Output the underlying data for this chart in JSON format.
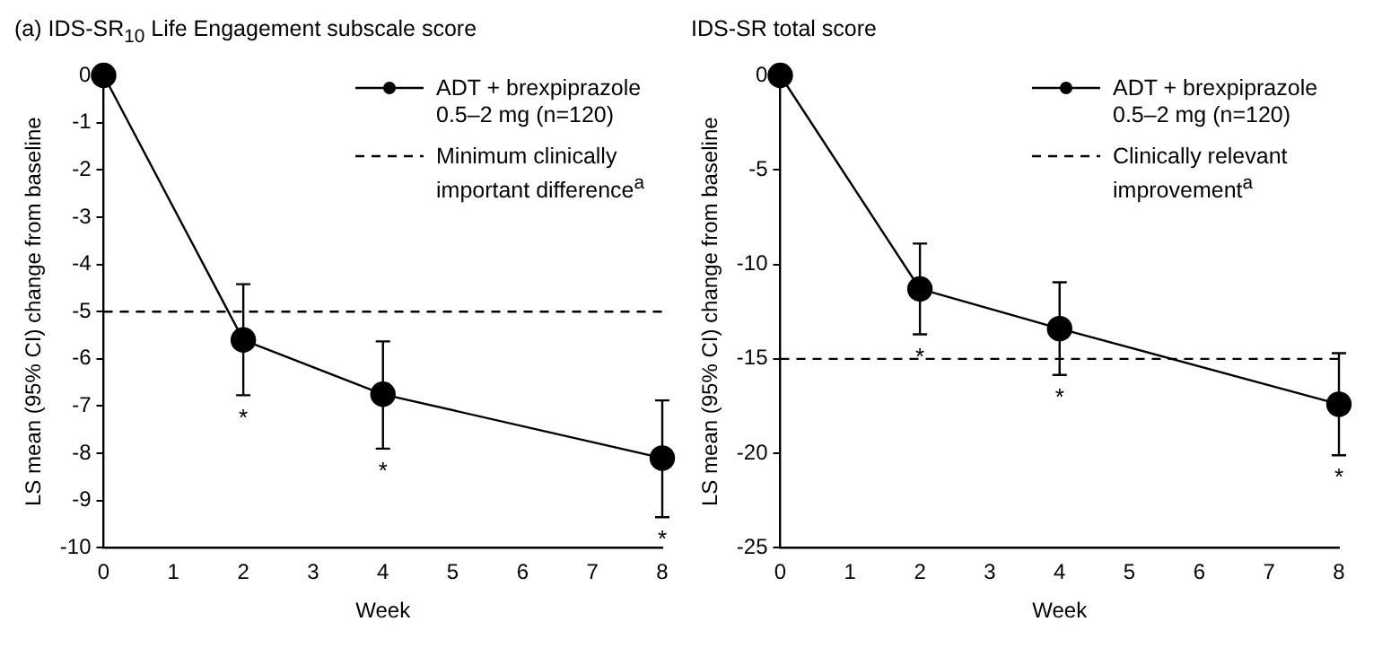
{
  "chart_data": [
    {
      "type": "line",
      "title": "(a) IDS-SR$_{10}$ Life Engagement subscale score",
      "xlabel": "Week",
      "ylabel": "LS mean (95% CI) change from baseline",
      "x": [
        0,
        2,
        4,
        8
      ],
      "xlim": [
        0,
        8
      ],
      "xticks": [
        0,
        1,
        2,
        3,
        4,
        5,
        6,
        7,
        8
      ],
      "ylim": [
        -10,
        0
      ],
      "yticks": [
        -10,
        -9,
        -8,
        -7,
        -6,
        -5,
        -4,
        -3,
        -2,
        -1,
        0
      ],
      "series": [
        {
          "name": "ADT + brexpiprazole 0.5–2 mg (n=120)",
          "color": "#000000",
          "values": [
            0,
            -5.6,
            -6.75,
            -8.1
          ],
          "errors": [
            null,
            [
              -6.77,
              -4.42
            ],
            [
              -7.9,
              -5.63
            ],
            [
              -9.35,
              -6.88
            ]
          ]
        }
      ],
      "ref_lines": [
        {
          "axis": "y",
          "value": -5,
          "label": "Minimum clinically important difference$^{a}$",
          "color": "#000000",
          "line_style": "dashed"
        }
      ],
      "annotations": [
        {
          "text": "*",
          "x": 2,
          "y": -6.77
        },
        {
          "text": "*",
          "x": 4,
          "y": -7.9
        },
        {
          "text": "*",
          "x": 8,
          "y": -9.35
        }
      ],
      "marker": "circle",
      "line_style": "solid",
      "legend": "top right",
      "grid": false
    },
    {
      "type": "line",
      "title": "IDS-SR total score",
      "xlabel": "Week",
      "ylabel": "LS mean (95% CI) change from baseline",
      "x": [
        0,
        2,
        4,
        8
      ],
      "xlim": [
        0,
        8
      ],
      "xticks": [
        0,
        1,
        2,
        3,
        4,
        5,
        6,
        7,
        8
      ],
      "ylim": [
        -25,
        0
      ],
      "yticks": [
        -25,
        -20,
        -15,
        -10,
        -5,
        0
      ],
      "series": [
        {
          "name": "ADT + brexpiprazole 0.5–2 mg (n=120)",
          "color": "#000000",
          "values": [
            0,
            -11.3,
            -13.4,
            -17.4
          ],
          "errors": [
            null,
            [
              -13.7,
              -8.9
            ],
            [
              -15.85,
              -10.95
            ],
            [
              -20.1,
              -14.7
            ]
          ]
        }
      ],
      "ref_lines": [
        {
          "axis": "y",
          "value": -15,
          "label": "Clinically relevant improvement$^{a}$",
          "color": "#000000",
          "line_style": "dashed"
        }
      ],
      "annotations": [
        {
          "text": "*",
          "x": 2,
          "y": -13.7
        },
        {
          "text": "*",
          "x": 4,
          "y": -15.85
        },
        {
          "text": "*",
          "x": 8,
          "y": -20.1
        }
      ],
      "marker": "circle",
      "line_style": "solid",
      "legend": "top right",
      "grid": false
    }
  ]
}
